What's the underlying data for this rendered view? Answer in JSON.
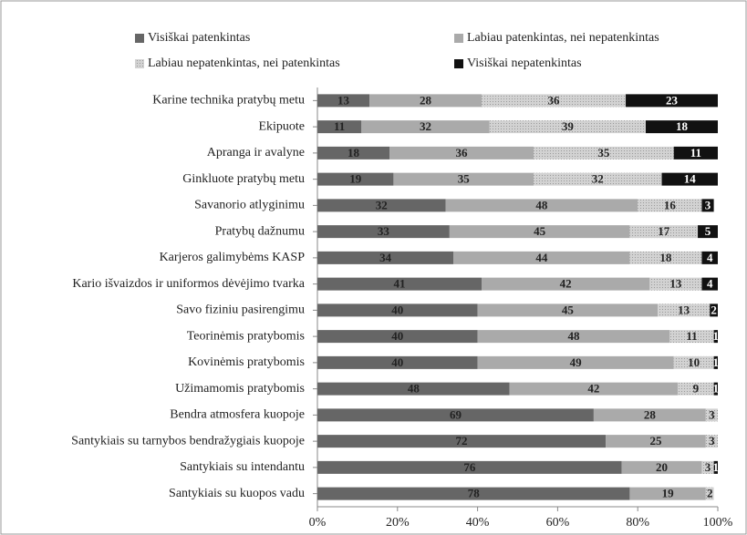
{
  "chart_data": {
    "type": "stacked_bar_horizontal",
    "categories": [
      "Karine technika pratybų metu",
      "Ekipuote",
      "Apranga ir avalyne",
      "Ginkluote pratybų metu",
      "Savanorio atlyginimu",
      "Pratybų dažnumu",
      "Karjeros galimybėms KASP",
      "Kario išvaizdos ir uniformos dėvėjimo tvarka",
      "Savo fiziniu pasirengimu",
      "Teorinėmis pratybomis",
      "Kovinėmis pratybomis",
      "Užimamomis pratybomis",
      "Bendra atmosfera kuopoje",
      "Santykiais su tarnybos bendražygiais kuopoje",
      "Santykiais su intendantu",
      "Santykiais su kuopos vadu"
    ],
    "series": [
      {
        "name": "Visiškai patenkintas",
        "color": "#666666",
        "values": [
          13,
          11,
          18,
          19,
          32,
          33,
          34,
          41,
          40,
          40,
          40,
          48,
          69,
          72,
          76,
          78
        ]
      },
      {
        "name": "Labiau patenkintas, nei nepatenkintas",
        "color": "#aaaaaa",
        "values": [
          28,
          32,
          36,
          35,
          48,
          45,
          44,
          42,
          45,
          48,
          49,
          42,
          28,
          25,
          20,
          19
        ]
      },
      {
        "name": "Labiau nepatenkintas, nei patenkintas",
        "color": "#d2d2d2",
        "values": [
          36,
          39,
          35,
          32,
          16,
          17,
          18,
          13,
          13,
          11,
          10,
          9,
          3,
          3,
          3,
          2
        ]
      },
      {
        "name": "Visiškai nepatenkintas",
        "color": "#111111",
        "values": [
          23,
          18,
          11,
          14,
          3,
          5,
          4,
          4,
          2,
          1,
          1,
          1,
          0,
          0,
          1,
          0
        ]
      }
    ],
    "xlim": [
      0,
      100
    ],
    "xticks": [
      {
        "value": 0,
        "label": "0%"
      },
      {
        "value": 20,
        "label": "20%"
      },
      {
        "value": 40,
        "label": "40%"
      },
      {
        "value": 60,
        "label": "60%"
      },
      {
        "value": 80,
        "label": "80%"
      },
      {
        "value": 100,
        "label": "100%"
      }
    ]
  }
}
